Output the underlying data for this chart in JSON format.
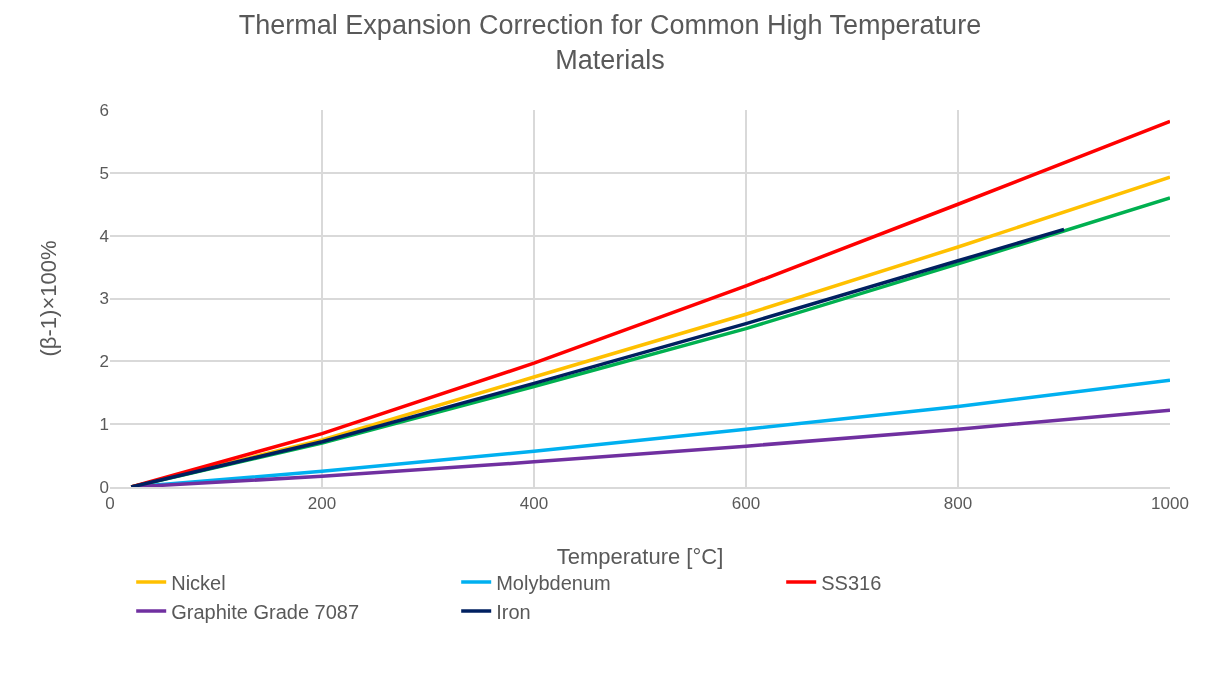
{
  "chart_data": {
    "type": "line",
    "title": "Thermal Expansion Correction for Common High Temperature Materials",
    "xlabel": "Temperature [°C]",
    "ylabel": "(β-1)×100%",
    "x": [
      20,
      200,
      400,
      600,
      800,
      1000
    ],
    "series": [
      {
        "name": "Nickel",
        "color": "#ffc000",
        "values": [
          0,
          0.75,
          1.75,
          2.75,
          3.82,
          4.93
        ]
      },
      {
        "name": "Molybdenum",
        "color": "#00b0f0",
        "values": [
          0,
          0.25,
          0.57,
          0.92,
          1.28,
          1.7
        ]
      },
      {
        "color": "#00b050",
        "values": [
          0,
          0.7,
          1.6,
          2.52,
          3.55,
          4.6
        ]
      },
      {
        "name": "SS316",
        "color": "#ff0000",
        "values": [
          0,
          0.85,
          1.97,
          3.2,
          4.5,
          5.82
        ]
      },
      {
        "name": "Graphite Grade 7087",
        "color": "#7030a0",
        "values": [
          0,
          0.17,
          0.4,
          0.65,
          0.92,
          1.22
        ]
      },
      {
        "name": "Iron",
        "color": "#002060",
        "x": [
          20,
          200,
          400,
          600,
          800,
          900
        ],
        "values": [
          0,
          0.72,
          1.65,
          2.6,
          3.6,
          4.1
        ]
      }
    ],
    "xlim": [
      0,
      1000
    ],
    "xticks": [
      0,
      200,
      400,
      600,
      800,
      1000
    ],
    "ylim": [
      0,
      6
    ],
    "yticks": [
      0,
      1,
      2,
      3,
      4,
      5,
      6
    ],
    "grid": true,
    "legend": "bottom"
  }
}
